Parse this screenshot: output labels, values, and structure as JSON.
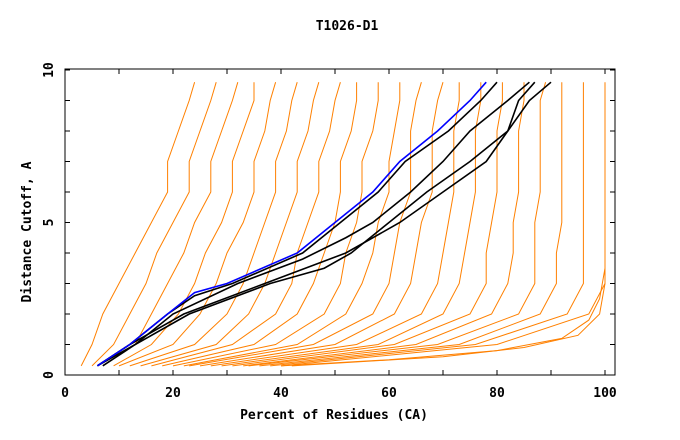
{
  "chart_data": {
    "type": "line",
    "title": "T1026-D1",
    "xlabel": "Percent of Residues (CA)",
    "ylabel": "Distance Cutoff, A",
    "xlim": [
      0,
      100
    ],
    "ylim": [
      0,
      10
    ],
    "xticks": [
      "0",
      "20",
      "40",
      "60",
      "80",
      "100"
    ],
    "yticks": [
      "0",
      "5",
      "10"
    ],
    "grid": false,
    "colors": {
      "orange": "#ff8000",
      "highlight": "#0000ff",
      "black": "#000000"
    },
    "y_levels": [
      0.3,
      1,
      2,
      3,
      4,
      5,
      6,
      7,
      8,
      9,
      9.6
    ],
    "orange_series": [
      [
        3,
        5,
        7,
        10,
        13,
        16,
        19,
        19,
        21,
        23,
        24
      ],
      [
        5,
        9,
        12,
        15,
        17,
        20,
        23,
        23,
        25,
        27,
        28
      ],
      [
        7,
        13,
        16,
        19,
        22,
        24,
        27,
        27,
        29,
        31,
        32
      ],
      [
        9,
        16,
        21,
        24,
        26,
        29,
        31,
        31,
        33,
        35,
        35
      ],
      [
        10,
        20,
        25,
        28,
        30,
        33,
        35,
        35,
        37,
        38,
        39
      ],
      [
        12,
        24,
        30,
        33,
        35,
        37,
        39,
        39,
        41,
        42,
        43
      ],
      [
        14,
        28,
        34,
        37,
        39,
        41,
        43,
        43,
        45,
        46,
        47
      ],
      [
        16,
        31,
        39,
        42,
        43,
        45,
        47,
        47,
        49,
        50,
        51
      ],
      [
        18,
        35,
        43,
        46,
        48,
        50,
        51,
        51,
        53,
        54,
        54
      ],
      [
        20,
        39,
        48,
        51,
        52,
        54,
        55,
        55,
        57,
        58,
        58
      ],
      [
        22,
        43,
        52,
        55,
        57,
        58,
        60,
        60,
        61,
        62,
        62
      ],
      [
        23,
        46,
        57,
        60,
        61,
        62,
        64,
        64,
        64,
        65,
        66
      ],
      [
        25,
        50,
        61,
        64,
        65,
        66,
        68,
        68,
        68,
        69,
        70
      ],
      [
        27,
        54,
        66,
        69,
        70,
        71,
        72,
        72,
        72,
        73,
        73
      ],
      [
        29,
        58,
        70,
        73,
        74,
        75,
        76,
        76,
        76,
        77,
        77
      ],
      [
        31,
        61,
        75,
        78,
        78,
        79,
        80,
        80,
        80,
        81,
        81
      ],
      [
        33,
        65,
        79,
        82,
        83,
        83,
        84,
        84,
        84,
        85,
        85
      ],
      [
        34,
        69,
        84,
        87,
        87,
        87,
        88,
        88,
        88,
        88,
        89
      ],
      [
        36,
        73,
        88,
        91,
        91,
        92,
        92,
        92,
        92,
        92,
        92
      ],
      [
        38,
        76,
        93,
        96,
        96,
        96,
        96,
        96,
        96,
        96,
        96
      ],
      [
        40,
        80,
        97,
        100,
        100,
        100,
        100,
        100,
        100,
        100,
        100
      ]
    ],
    "orange_extra": [
      {
        "x": [
          40,
          60,
          80,
          92,
          97,
          99,
          100
        ],
        "y": [
          0.3,
          0.5,
          0.8,
          1.2,
          1.8,
          2.5,
          3.5
        ]
      },
      {
        "x": [
          42,
          70,
          85,
          95,
          99,
          100
        ],
        "y": [
          0.3,
          0.6,
          0.9,
          1.3,
          2,
          3
        ]
      }
    ],
    "highlight_series": {
      "name": "blue",
      "x": [
        6,
        12,
        19,
        24,
        30,
        43,
        50,
        57,
        62,
        69,
        75,
        78
      ],
      "y": [
        0.3,
        1,
        2,
        2.7,
        3,
        4,
        5,
        6,
        7,
        8,
        9,
        9.6
      ]
    },
    "black_series": [
      {
        "x": [
          6,
          12,
          19,
          24,
          31,
          44,
          51,
          58,
          63,
          71,
          77,
          80
        ],
        "y": [
          0.3,
          1,
          2,
          2.6,
          3,
          4,
          5,
          6,
          7,
          8,
          9,
          9.6
        ]
      },
      {
        "x": [
          6,
          13,
          20,
          32,
          44,
          52,
          57,
          64,
          70,
          75,
          82,
          86
        ],
        "y": [
          0.3,
          1,
          2,
          3,
          3.8,
          4.5,
          5,
          6,
          7,
          8,
          9,
          9.6
        ]
      },
      {
        "x": [
          7,
          13,
          23,
          38,
          48,
          53,
          60,
          67,
          75,
          82,
          84,
          87
        ],
        "y": [
          0.3,
          1,
          2,
          3,
          3.5,
          4,
          5,
          6,
          7,
          8,
          9,
          9.6
        ]
      },
      {
        "x": [
          6,
          12,
          22,
          37,
          52,
          62,
          70,
          78,
          82,
          86,
          90
        ],
        "y": [
          0.3,
          1,
          2,
          3,
          4,
          5,
          6,
          7,
          8,
          9,
          9.6
        ]
      }
    ]
  }
}
